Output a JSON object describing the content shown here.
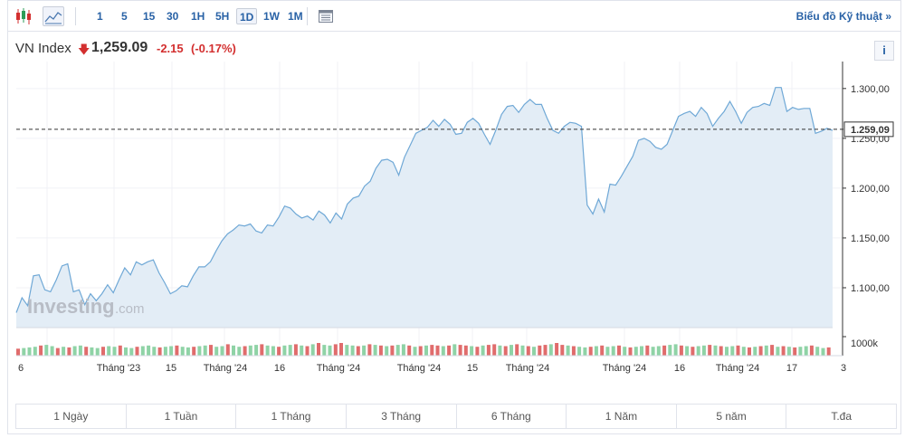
{
  "toolbar": {
    "intervals": [
      "1",
      "5",
      "15",
      "30",
      "1H",
      "5H",
      "1D",
      "1W",
      "1M"
    ],
    "active_interval": "1D",
    "tech_link": "Biểu đồ Kỹ thuật »"
  },
  "header": {
    "symbol": "VN Index",
    "price": "1,259.09",
    "change": "-2.15",
    "change_pct": "(-0.17%)"
  },
  "info_label": "i",
  "watermark": {
    "brand": "Investing",
    "suffix": ".com"
  },
  "ranges": [
    "1 Ngày",
    "1 Tuần",
    "1 Tháng",
    "3 Tháng",
    "6 Tháng",
    "1 Năm",
    "5 năm",
    "T.đa"
  ],
  "colors": {
    "line": "#6fa8d6",
    "fill": "#e3edf6",
    "down": "#d32f2f",
    "vol_up": "#8fd3a6",
    "vol_down": "#e06c6c"
  },
  "chart_data": {
    "type": "area",
    "last_price": 1259.09,
    "last_price_label": "1.259,09",
    "ylim": [
      1060,
      1318
    ],
    "y_ticks": [
      1100,
      1150,
      1200,
      1250,
      1300
    ],
    "y_tick_labels": [
      "1.100,00",
      "1.150,00",
      "1.200,00",
      "1.250,00",
      "1.300,00"
    ],
    "volume_label": "1000k",
    "x_tick_labels": [
      "6",
      "Tháng '23",
      "15",
      "Tháng '24",
      "16",
      "Tháng '24",
      "Tháng '24",
      "15",
      "Tháng '24",
      "Tháng '24",
      "16",
      "Tháng '24",
      "17",
      "3"
    ],
    "values": [
      1075,
      1090,
      1082,
      1112,
      1113,
      1098,
      1096,
      1108,
      1122,
      1124,
      1096,
      1098,
      1083,
      1094,
      1087,
      1094,
      1103,
      1095,
      1108,
      1120,
      1113,
      1126,
      1123,
      1126,
      1128,
      1115,
      1105,
      1094,
      1097,
      1102,
      1101,
      1112,
      1121,
      1121,
      1126,
      1137,
      1147,
      1154,
      1158,
      1163,
      1162,
      1164,
      1157,
      1155,
      1163,
      1162,
      1171,
      1182,
      1180,
      1174,
      1170,
      1172,
      1168,
      1177,
      1173,
      1165,
      1175,
      1169,
      1184,
      1190,
      1192,
      1202,
      1207,
      1220,
      1228,
      1229,
      1226,
      1213,
      1231,
      1243,
      1255,
      1258,
      1261,
      1268,
      1262,
      1269,
      1264,
      1254,
      1255,
      1266,
      1270,
      1265,
      1254,
      1244,
      1258,
      1274,
      1282,
      1283,
      1276,
      1284,
      1289,
      1284,
      1284,
      1270,
      1258,
      1255,
      1262,
      1266,
      1265,
      1262,
      1183,
      1174,
      1189,
      1176,
      1204,
      1203,
      1212,
      1222,
      1232,
      1248,
      1250,
      1247,
      1241,
      1239,
      1244,
      1258,
      1272,
      1275,
      1277,
      1272,
      1281,
      1275,
      1262,
      1270,
      1277,
      1287,
      1277,
      1265,
      1276,
      1281,
      1282,
      1285,
      1283,
      1301,
      1301,
      1277,
      1281,
      1279,
      1280,
      1280,
      1255,
      1257,
      1260,
      1258
    ],
    "volume": [
      {
        "v": 0.55,
        "up": false
      },
      {
        "v": 0.6,
        "up": true
      },
      {
        "v": 0.65,
        "up": true
      },
      {
        "v": 0.7,
        "up": true
      },
      {
        "v": 0.8,
        "up": false
      },
      {
        "v": 0.85,
        "up": true
      },
      {
        "v": 0.75,
        "up": true
      },
      {
        "v": 0.6,
        "up": false
      },
      {
        "v": 0.7,
        "up": true
      },
      {
        "v": 0.65,
        "up": false
      },
      {
        "v": 0.75,
        "up": true
      },
      {
        "v": 0.8,
        "up": true
      },
      {
        "v": 0.7,
        "up": false
      },
      {
        "v": 0.65,
        "up": true
      },
      {
        "v": 0.6,
        "up": true
      },
      {
        "v": 0.7,
        "up": false
      },
      {
        "v": 0.75,
        "up": true
      },
      {
        "v": 0.7,
        "up": true
      },
      {
        "v": 0.8,
        "up": false
      },
      {
        "v": 0.65,
        "up": true
      },
      {
        "v": 0.6,
        "up": true
      },
      {
        "v": 0.7,
        "up": false
      },
      {
        "v": 0.75,
        "up": true
      },
      {
        "v": 0.8,
        "up": true
      },
      {
        "v": 0.7,
        "up": true
      },
      {
        "v": 0.65,
        "up": false
      },
      {
        "v": 0.7,
        "up": true
      },
      {
        "v": 0.75,
        "up": true
      },
      {
        "v": 0.8,
        "up": false
      },
      {
        "v": 0.7,
        "up": true
      },
      {
        "v": 0.65,
        "up": true
      },
      {
        "v": 0.7,
        "up": false
      },
      {
        "v": 0.75,
        "up": true
      },
      {
        "v": 0.8,
        "up": true
      },
      {
        "v": 0.85,
        "up": false
      },
      {
        "v": 0.7,
        "up": true
      },
      {
        "v": 0.75,
        "up": true
      },
      {
        "v": 0.9,
        "up": false
      },
      {
        "v": 0.8,
        "up": true
      },
      {
        "v": 0.7,
        "up": true
      },
      {
        "v": 0.75,
        "up": false
      },
      {
        "v": 0.8,
        "up": true
      },
      {
        "v": 0.85,
        "up": true
      },
      {
        "v": 0.9,
        "up": false
      },
      {
        "v": 0.8,
        "up": true
      },
      {
        "v": 0.75,
        "up": true
      },
      {
        "v": 0.7,
        "up": false
      },
      {
        "v": 0.8,
        "up": true
      },
      {
        "v": 0.85,
        "up": true
      },
      {
        "v": 0.9,
        "up": false
      },
      {
        "v": 0.8,
        "up": true
      },
      {
        "v": 0.75,
        "up": false
      },
      {
        "v": 0.9,
        "up": true
      },
      {
        "v": 1.0,
        "up": false
      },
      {
        "v": 0.85,
        "up": true
      },
      {
        "v": 0.8,
        "up": true
      },
      {
        "v": 0.9,
        "up": false
      },
      {
        "v": 1.0,
        "up": false
      },
      {
        "v": 0.85,
        "up": true
      },
      {
        "v": 0.8,
        "up": true
      },
      {
        "v": 0.75,
        "up": false
      },
      {
        "v": 0.8,
        "up": true
      },
      {
        "v": 0.9,
        "up": false
      },
      {
        "v": 0.85,
        "up": true
      },
      {
        "v": 0.8,
        "up": false
      },
      {
        "v": 0.75,
        "up": true
      },
      {
        "v": 0.8,
        "up": false
      },
      {
        "v": 0.85,
        "up": true
      },
      {
        "v": 0.9,
        "up": true
      },
      {
        "v": 0.8,
        "up": false
      },
      {
        "v": 0.7,
        "up": true
      },
      {
        "v": 0.75,
        "up": false
      },
      {
        "v": 0.8,
        "up": true
      },
      {
        "v": 0.85,
        "up": false
      },
      {
        "v": 0.8,
        "up": false
      },
      {
        "v": 0.75,
        "up": true
      },
      {
        "v": 0.8,
        "up": false
      },
      {
        "v": 0.9,
        "up": true
      },
      {
        "v": 0.85,
        "up": false
      },
      {
        "v": 0.8,
        "up": false
      },
      {
        "v": 0.75,
        "up": true
      },
      {
        "v": 0.7,
        "up": false
      },
      {
        "v": 0.8,
        "up": true
      },
      {
        "v": 0.85,
        "up": false
      },
      {
        "v": 0.9,
        "up": false
      },
      {
        "v": 0.8,
        "up": true
      },
      {
        "v": 0.75,
        "up": false
      },
      {
        "v": 0.85,
        "up": true
      },
      {
        "v": 0.9,
        "up": false
      },
      {
        "v": 0.8,
        "up": true
      },
      {
        "v": 0.75,
        "up": false
      },
      {
        "v": 0.7,
        "up": true
      },
      {
        "v": 0.8,
        "up": false
      },
      {
        "v": 0.85,
        "up": false
      },
      {
        "v": 0.9,
        "up": true
      },
      {
        "v": 1.0,
        "up": false
      },
      {
        "v": 0.85,
        "up": false
      },
      {
        "v": 0.8,
        "up": true
      },
      {
        "v": 0.75,
        "up": false
      },
      {
        "v": 0.7,
        "up": true
      },
      {
        "v": 0.65,
        "up": true
      },
      {
        "v": 0.7,
        "up": false
      },
      {
        "v": 0.75,
        "up": true
      },
      {
        "v": 0.8,
        "up": false
      },
      {
        "v": 0.7,
        "up": true
      },
      {
        "v": 0.75,
        "up": true
      },
      {
        "v": 0.8,
        "up": false
      },
      {
        "v": 0.7,
        "up": true
      },
      {
        "v": 0.65,
        "up": false
      },
      {
        "v": 0.7,
        "up": true
      },
      {
        "v": 0.75,
        "up": true
      },
      {
        "v": 0.8,
        "up": false
      },
      {
        "v": 0.7,
        "up": true
      },
      {
        "v": 0.75,
        "up": true
      },
      {
        "v": 0.8,
        "up": false
      },
      {
        "v": 0.85,
        "up": true
      },
      {
        "v": 0.9,
        "up": true
      },
      {
        "v": 0.8,
        "up": false
      },
      {
        "v": 0.75,
        "up": true
      },
      {
        "v": 0.7,
        "up": false
      },
      {
        "v": 0.75,
        "up": true
      },
      {
        "v": 0.8,
        "up": true
      },
      {
        "v": 0.85,
        "up": false
      },
      {
        "v": 0.8,
        "up": true
      },
      {
        "v": 0.75,
        "up": false
      },
      {
        "v": 0.7,
        "up": true
      },
      {
        "v": 0.75,
        "up": true
      },
      {
        "v": 0.8,
        "up": false
      },
      {
        "v": 0.7,
        "up": true
      },
      {
        "v": 0.65,
        "up": false
      },
      {
        "v": 0.7,
        "up": true
      },
      {
        "v": 0.75,
        "up": false
      },
      {
        "v": 0.8,
        "up": true
      },
      {
        "v": 0.85,
        "up": false
      },
      {
        "v": 0.7,
        "up": true
      },
      {
        "v": 0.75,
        "up": false
      },
      {
        "v": 0.7,
        "up": true
      },
      {
        "v": 0.65,
        "up": false
      },
      {
        "v": 0.7,
        "up": true
      },
      {
        "v": 0.75,
        "up": true
      },
      {
        "v": 0.8,
        "up": false
      },
      {
        "v": 0.7,
        "up": true
      },
      {
        "v": 0.6,
        "up": true
      },
      {
        "v": 0.65,
        "up": false
      }
    ]
  }
}
